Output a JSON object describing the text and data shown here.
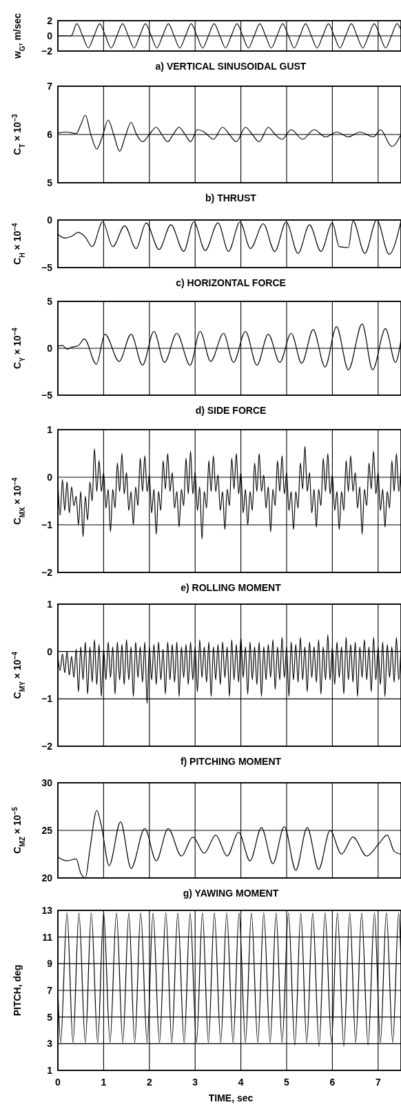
{
  "chart_data": [
    {
      "type": "line",
      "title": "a) VERTICAL SINUSOIDAL GUST",
      "ylabel": "w$_{G}$, m/sec",
      "xlim": [
        0,
        7.5
      ],
      "xticks": [
        0,
        1,
        2,
        3,
        4,
        5,
        6,
        7
      ],
      "ylim": [
        -2,
        2
      ],
      "yticks": [
        -2,
        0,
        2
      ],
      "grid": true,
      "tick_labels": "y",
      "x": [
        0,
        0.29,
        0.415,
        0.54,
        0.665,
        0.79,
        0.915,
        1.04,
        1.165,
        1.29,
        1.415,
        1.54,
        1.665,
        1.79,
        1.915,
        2.04,
        2.165,
        2.29,
        2.415,
        2.54,
        2.665,
        2.79,
        2.915,
        3.04,
        3.165,
        3.29,
        3.415,
        3.54,
        3.665,
        3.79,
        3.915,
        4.04,
        4.165,
        4.29,
        4.415,
        4.54,
        4.665,
        4.79,
        4.915,
        5.04,
        5.165,
        5.29,
        5.415,
        5.54,
        5.665,
        5.79,
        5.915,
        6.04,
        6.165,
        6.29,
        6.415,
        6.54,
        6.665,
        6.79,
        6.915,
        7.04,
        7.165,
        7.29,
        7.415,
        7.5
      ],
      "series": [
        {
          "color": "#000000",
          "values": [
            0,
            0,
            1.6,
            0,
            -1.6,
            0,
            1.6,
            0,
            -1.6,
            0,
            1.6,
            0,
            -1.6,
            0,
            1.6,
            0,
            -1.6,
            0,
            1.6,
            0,
            -1.6,
            0,
            1.6,
            0,
            -1.6,
            0,
            1.6,
            0,
            -1.6,
            0,
            1.6,
            0,
            -1.6,
            0,
            1.6,
            0,
            -1.6,
            0,
            1.6,
            0,
            -1.6,
            0,
            1.6,
            0,
            -1.6,
            0,
            1.6,
            0,
            -1.6,
            0,
            1.6,
            0,
            -1.6,
            0,
            1.6,
            0,
            -1.6,
            0,
            1.6,
            0.8
          ]
        }
      ]
    },
    {
      "type": "line",
      "title": "b) THRUST",
      "ylabel": "C$_{T}$ × 10$^{−3}$",
      "xlim": [
        0,
        7.5
      ],
      "xticks": [
        0,
        1,
        2,
        3,
        4,
        5,
        6,
        7
      ],
      "ylim": [
        5,
        7
      ],
      "yticks": [
        5,
        6,
        7
      ],
      "grid": true,
      "tick_labels": "y",
      "x": [
        0,
        0.2,
        0.4,
        0.5,
        0.6,
        0.72,
        0.85,
        0.97,
        1.1,
        1.22,
        1.35,
        1.47,
        1.6,
        1.72,
        1.85,
        2.0,
        2.15,
        2.27,
        2.4,
        2.52,
        2.65,
        2.78,
        2.9,
        3.05,
        3.2,
        3.4,
        3.6,
        3.75,
        3.9,
        4.1,
        4.25,
        4.4,
        4.6,
        4.75,
        4.9,
        5.1,
        5.35,
        5.6,
        5.85,
        6.1,
        6.35,
        6.6,
        6.9,
        7.05,
        7.3,
        7.5
      ],
      "series": [
        {
          "color": "#000000",
          "values": [
            6.03,
            6.05,
            6.02,
            6.2,
            6.4,
            6.0,
            5.7,
            5.95,
            6.3,
            6.0,
            5.65,
            5.95,
            6.25,
            6.0,
            5.85,
            6.0,
            6.15,
            6.0,
            5.85,
            6.0,
            6.15,
            6.0,
            5.85,
            6.1,
            6.05,
            5.9,
            6.15,
            6.0,
            5.85,
            6.15,
            6.0,
            5.85,
            6.15,
            6.0,
            5.9,
            6.1,
            5.9,
            6.1,
            5.95,
            6.05,
            5.95,
            6.05,
            5.95,
            6.1,
            5.75,
            6.0
          ]
        }
      ]
    },
    {
      "type": "line",
      "title": "c) HORIZONTAL FORCE",
      "ylabel": "C$_{H}$ × 10$^{−4}$",
      "xlim": [
        0,
        7.5
      ],
      "xticks": [
        0,
        1,
        2,
        3,
        4,
        5,
        6,
        7
      ],
      "ylim": [
        -5,
        0
      ],
      "yticks": [
        -5,
        0
      ],
      "grid": true,
      "tick_labels": "y",
      "x": [
        0,
        0.15,
        0.3,
        0.45,
        0.6,
        0.75,
        0.98,
        1.2,
        1.46,
        1.71,
        1.93,
        2.21,
        2.47,
        2.75,
        2.97,
        3.22,
        3.5,
        3.73,
        3.98,
        4.21,
        4.49,
        4.74,
        4.99,
        5.25,
        5.5,
        5.75,
        6.0,
        6.15,
        6.35,
        6.45,
        6.71,
        6.97,
        7.24,
        7.5
      ],
      "series": [
        {
          "color": "#000000",
          "values": [
            -1.5,
            -1.9,
            -1.7,
            -1.3,
            -1.8,
            -2.8,
            -0.2,
            -2.8,
            -0.6,
            -3.0,
            -0.3,
            -3.1,
            -0.5,
            -3.3,
            -0.2,
            -3.2,
            -0.3,
            -3.3,
            -0.2,
            -3.0,
            -0.4,
            -3.3,
            -0.2,
            -3.5,
            -0.5,
            -3.3,
            -0.3,
            -2.8,
            -2.9,
            -0.1,
            -3.5,
            0,
            -3.6,
            -0.1
          ]
        }
      ]
    },
    {
      "type": "line",
      "title": "d) SIDE FORCE",
      "ylabel": "C$_{Y}$ × 10$^{−4}$",
      "xlim": [
        0,
        7.5
      ],
      "xticks": [
        0,
        1,
        2,
        3,
        4,
        5,
        6,
        7
      ],
      "ylim": [
        -5,
        5
      ],
      "yticks": [
        -5,
        0,
        5
      ],
      "grid": true,
      "tick_labels": "y",
      "x": [
        0,
        0.1,
        0.2,
        0.3,
        0.45,
        0.58,
        0.84,
        1.03,
        1.34,
        1.6,
        1.85,
        2.1,
        2.33,
        2.6,
        2.89,
        3.11,
        3.34,
        3.62,
        3.84,
        4.1,
        4.35,
        4.6,
        4.85,
        5.1,
        5.33,
        5.58,
        5.84,
        6.09,
        6.35,
        6.65,
        6.88,
        7.16,
        7.38,
        7.5
      ],
      "series": [
        {
          "color": "#000000",
          "values": [
            0.2,
            0.3,
            -0.1,
            0.1,
            0.3,
            1.0,
            -1.7,
            1.5,
            -1.4,
            1.5,
            -1.8,
            1.8,
            -1.5,
            1.6,
            -1.8,
            1.8,
            -1.4,
            1.6,
            -1.5,
            1.8,
            -1.8,
            1.5,
            -1.5,
            1.6,
            -1.6,
            2.0,
            -2.0,
            2.3,
            -2.3,
            2.6,
            -2.3,
            2.1,
            -1.5,
            0.9
          ]
        }
      ]
    },
    {
      "type": "line",
      "title": "e) ROLLING MOMENT",
      "ylabel": "C$_{MX}$ × 10$^{−4}$",
      "xlim": [
        0,
        7.5
      ],
      "xticks": [
        0,
        1,
        2,
        3,
        4,
        5,
        6,
        7
      ],
      "ylim": [
        -2,
        1
      ],
      "yticks": [
        -2,
        -1,
        0,
        1
      ],
      "grid": true,
      "tick_labels": "y",
      "x": [
        0,
        0.05,
        0.1,
        0.15,
        0.2,
        0.25,
        0.3,
        0.35,
        0.4,
        0.45,
        0.5,
        0.55,
        0.6,
        0.65,
        0.7,
        0.75,
        0.8,
        0.85,
        0.9,
        0.95,
        1,
        1.05,
        1.1,
        1.15,
        1.2,
        1.25,
        1.3,
        1.35,
        1.4,
        1.45,
        1.5,
        1.55,
        1.6,
        1.65,
        1.7,
        1.75,
        1.8,
        1.85,
        1.9,
        1.95,
        2,
        2.05,
        2.1,
        2.15,
        2.2,
        2.25,
        2.3,
        2.35,
        2.4,
        2.45,
        2.5,
        2.55,
        2.6,
        2.65,
        2.7,
        2.75,
        2.8,
        2.85,
        2.9,
        2.95,
        3,
        3.05,
        3.1,
        3.15,
        3.2,
        3.25,
        3.3,
        3.35,
        3.4,
        3.45,
        3.5,
        3.55,
        3.6,
        3.65,
        3.7,
        3.75,
        3.8,
        3.85,
        3.9,
        3.95,
        4,
        4.05,
        4.1,
        4.15,
        4.2,
        4.25,
        4.3,
        4.35,
        4.4,
        4.45,
        4.5,
        4.55,
        4.6,
        4.65,
        4.7,
        4.75,
        4.8,
        4.85,
        4.9,
        4.95,
        5,
        5.05,
        5.1,
        5.15,
        5.2,
        5.25,
        5.3,
        5.35,
        5.4,
        5.45,
        5.5,
        5.55,
        5.6,
        5.65,
        5.7,
        5.75,
        5.8,
        5.85,
        5.9,
        5.95,
        6,
        6.05,
        6.1,
        6.15,
        6.2,
        6.25,
        6.3,
        6.35,
        6.4,
        6.45,
        6.5,
        6.55,
        6.6,
        6.65,
        6.7,
        6.75,
        6.8,
        6.85,
        6.9,
        6.95,
        7,
        7.05,
        7.1,
        7.15,
        7.2,
        7.25,
        7.3,
        7.35,
        7.4,
        7.45,
        7.5
      ],
      "series": [
        {
          "color": "#000000",
          "values": [
            -0.1,
            -0.8,
            -0.05,
            -0.7,
            -0.1,
            -0.75,
            -0.2,
            -0.6,
            -0.4,
            -1.0,
            -0.3,
            -1.25,
            -0.4,
            -0.9,
            -0.1,
            -0.5,
            0.6,
            -0.3,
            0.35,
            -0.3,
            0.1,
            -0.65,
            -0.25,
            -1.15,
            -0.25,
            -0.65,
            0.3,
            -0.3,
            0.5,
            -0.35,
            0.1,
            -0.7,
            -0.3,
            -1.0,
            -0.2,
            -0.6,
            0.4,
            -0.3,
            0.45,
            -0.3,
            0.05,
            -0.75,
            -0.25,
            -1.2,
            -0.3,
            -0.7,
            0.35,
            -0.25,
            0.5,
            -0.3,
            0.1,
            -0.65,
            -0.3,
            -1.05,
            -0.25,
            -0.6,
            0.4,
            -0.35,
            0.55,
            -0.35,
            0.1,
            -0.7,
            -0.2,
            -1.3,
            -0.3,
            -0.65,
            0.35,
            -0.3,
            0.45,
            -0.3,
            0.05,
            -0.7,
            -0.3,
            -1.1,
            -0.25,
            -0.6,
            0.4,
            -0.25,
            0.5,
            -0.35,
            0.1,
            -0.75,
            -0.25,
            -1.0,
            -0.3,
            -0.7,
            0.3,
            -0.3,
            0.5,
            -0.3,
            0.05,
            -0.65,
            -0.2,
            -1.15,
            -0.25,
            -0.6,
            0.35,
            -0.3,
            0.45,
            -0.35,
            0.1,
            -0.7,
            -0.3,
            -1.1,
            -0.3,
            -0.65,
            0.3,
            -0.25,
            0.65,
            -0.3,
            0.1,
            -0.75,
            -0.25,
            -1.05,
            -0.25,
            -0.6,
            0.4,
            -0.3,
            0.5,
            -0.35,
            0.05,
            -0.7,
            -0.3,
            -1.1,
            -0.3,
            -0.7,
            0.35,
            -0.3,
            0.45,
            -0.3,
            0.1,
            -0.65,
            -0.2,
            -1.2,
            -0.25,
            -0.6,
            0.3,
            -0.25,
            0.55,
            -0.35,
            0.1,
            -0.7,
            -0.25,
            -1.05,
            -0.3,
            -0.65,
            0.35,
            -0.3,
            0.5,
            -0.3,
            0.2
          ]
        }
      ]
    },
    {
      "type": "line",
      "title": "f) PITCHING MOMENT",
      "ylabel": "C$_{MY}$ × 10$^{−4}$",
      "xlim": [
        0,
        7.5
      ],
      "xticks": [
        0,
        1,
        2,
        3,
        4,
        5,
        6,
        7
      ],
      "ylim": [
        -2,
        1
      ],
      "yticks": [
        -2,
        -1,
        0,
        1
      ],
      "grid": true,
      "tick_labels": "y",
      "x": [
        0,
        0.05,
        0.1,
        0.15,
        0.2,
        0.25,
        0.3,
        0.35,
        0.4,
        0.45,
        0.5,
        0.55,
        0.6,
        0.65,
        0.7,
        0.75,
        0.8,
        0.85,
        0.9,
        0.95,
        1,
        1.05,
        1.1,
        1.15,
        1.2,
        1.25,
        1.3,
        1.35,
        1.4,
        1.45,
        1.5,
        1.55,
        1.6,
        1.65,
        1.7,
        1.75,
        1.8,
        1.85,
        1.9,
        1.95,
        2,
        2.05,
        2.1,
        2.15,
        2.2,
        2.25,
        2.3,
        2.35,
        2.4,
        2.45,
        2.5,
        2.55,
        2.6,
        2.65,
        2.7,
        2.75,
        2.8,
        2.85,
        2.9,
        2.95,
        3,
        3.05,
        3.1,
        3.15,
        3.2,
        3.25,
        3.3,
        3.35,
        3.4,
        3.45,
        3.5,
        3.55,
        3.6,
        3.65,
        3.7,
        3.75,
        3.8,
        3.85,
        3.9,
        3.95,
        4,
        4.05,
        4.1,
        4.15,
        4.2,
        4.25,
        4.3,
        4.35,
        4.4,
        4.45,
        4.5,
        4.55,
        4.6,
        4.65,
        4.7,
        4.75,
        4.8,
        4.85,
        4.9,
        4.95,
        5,
        5.05,
        5.1,
        5.15,
        5.2,
        5.25,
        5.3,
        5.35,
        5.4,
        5.45,
        5.5,
        5.55,
        5.6,
        5.65,
        5.7,
        5.75,
        5.8,
        5.85,
        5.9,
        5.95,
        6,
        6.05,
        6.1,
        6.15,
        6.2,
        6.25,
        6.3,
        6.35,
        6.4,
        6.45,
        6.5,
        6.55,
        6.6,
        6.65,
        6.7,
        6.75,
        6.8,
        6.85,
        6.9,
        6.95,
        7,
        7.05,
        7.1,
        7.15,
        7.2,
        7.25,
        7.3,
        7.35,
        7.4,
        7.45,
        7.5
      ],
      "series": [
        {
          "color": "#000000",
          "values": [
            -0.1,
            -0.4,
            -0.05,
            -0.45,
            0.0,
            -0.5,
            -0.1,
            -0.55,
            0.05,
            -0.85,
            0.1,
            -0.6,
            0.2,
            -0.9,
            0.1,
            -0.65,
            0.25,
            -0.7,
            0.15,
            -0.95,
            0.05,
            -0.6,
            0.2,
            -0.55,
            0.1,
            -0.9,
            0.2,
            -0.6,
            0.15,
            -0.7,
            0.25,
            -0.6,
            0.1,
            -0.95,
            0.2,
            -0.55,
            0.1,
            -0.65,
            0.2,
            -1.1,
            0.1,
            -0.6,
            0.15,
            -0.7,
            0.2,
            -0.6,
            0.05,
            -0.9,
            0.2,
            -0.6,
            0.15,
            -0.65,
            0.2,
            -0.95,
            0.1,
            -0.55,
            0.15,
            -0.7,
            0.2,
            -0.6,
            0.1,
            -0.85,
            0.25,
            -0.55,
            0.1,
            -0.65,
            0.2,
            -0.95,
            0.1,
            -0.6,
            0.15,
            -0.7,
            0.2,
            -0.55,
            0.1,
            -0.95,
            0.25,
            -0.6,
            0.15,
            -0.65,
            0.3,
            -0.55,
            0.1,
            -0.9,
            0.2,
            -0.6,
            0.1,
            -0.7,
            0.2,
            -0.95,
            0.1,
            -0.6,
            0.15,
            -0.55,
            0.25,
            -0.8,
            0.1,
            -0.6,
            0.3,
            -0.55,
            0.1,
            -0.95,
            0.2,
            -0.6,
            0.15,
            -0.65,
            0.3,
            -0.6,
            0.1,
            -0.85,
            0.2,
            -0.55,
            0.1,
            -0.65,
            0.25,
            -0.9,
            0.1,
            -0.6,
            0.35,
            -0.6,
            0.1,
            -0.7,
            0.2,
            -0.55,
            0.1,
            -0.9,
            0.3,
            -0.6,
            0.15,
            -0.65,
            0.2,
            -0.95,
            0.1,
            -0.55,
            0.25,
            -0.6,
            0.1,
            -0.85,
            0.3,
            -0.6,
            0.1,
            -0.7,
            0.2,
            -0.95,
            0.15,
            -0.55,
            0.1,
            -0.65,
            0.3,
            -0.6,
            0.1
          ]
        }
      ]
    },
    {
      "type": "line",
      "title": "g) YAWING MOMENT",
      "ylabel": "C$_{MZ}$ × 10$^{−5}$",
      "xlim": [
        0,
        7.5
      ],
      "xticks": [
        0,
        1,
        2,
        3,
        4,
        5,
        6,
        7
      ],
      "ylim": [
        20,
        30
      ],
      "yticks": [
        20,
        25,
        30
      ],
      "grid": true,
      "tick_labels": "y",
      "x": [
        0,
        0.2,
        0.4,
        0.5,
        0.6,
        0.7,
        0.85,
        0.95,
        1.12,
        1.37,
        1.6,
        1.9,
        2.15,
        2.41,
        2.7,
        2.95,
        3.2,
        3.45,
        3.7,
        3.95,
        4.2,
        4.45,
        4.7,
        4.95,
        5.2,
        5.45,
        5.7,
        5.95,
        6.2,
        6.45,
        6.75,
        7.0,
        7.2,
        7.35,
        7.5
      ],
      "series": [
        {
          "color": "#000000",
          "values": [
            22.2,
            21.8,
            22.0,
            20.5,
            20.0,
            23.0,
            27.1,
            25.5,
            21.3,
            25.9,
            21.0,
            25.2,
            21.8,
            25.2,
            22.3,
            24.3,
            22.6,
            24.5,
            22.3,
            24.8,
            21.8,
            25.3,
            21.5,
            25.4,
            20.8,
            25.3,
            20.9,
            25.0,
            22.5,
            24.3,
            22.3,
            23.5,
            24.5,
            22.8,
            22.5
          ]
        }
      ]
    },
    {
      "type": "line",
      "ylabel": "PITCH, deg",
      "xlabel": "TIME, sec",
      "xlim": [
        0,
        7.5
      ],
      "xticks": [
        0,
        1,
        2,
        3,
        4,
        5,
        6,
        7
      ],
      "ylim": [
        1,
        13
      ],
      "yticks": [
        1,
        3,
        5,
        7,
        9,
        11,
        13
      ],
      "grid": true,
      "x": [
        0,
        0.06,
        0.2,
        0.33,
        0.46,
        0.6,
        0.73,
        0.87,
        1.0,
        1.14,
        1.28,
        1.42,
        1.55,
        1.68,
        1.81,
        1.95,
        2.08,
        2.22,
        2.36,
        2.49,
        2.62,
        2.76,
        2.89,
        3.03,
        3.16,
        3.29,
        3.42,
        3.56,
        3.69,
        3.83,
        3.96,
        4.1,
        4.23,
        4.37,
        4.5,
        4.64,
        4.77,
        4.9,
        5.04,
        5.18,
        5.31,
        5.44,
        5.57,
        5.71,
        5.84,
        5.98,
        6.11,
        6.25,
        6.38,
        6.51,
        6.64,
        6.78,
        6.92,
        7.05,
        7.18,
        7.32,
        7.45,
        7.5
      ],
      "series": [
        {
          "color": "#000000",
          "values": [
            7,
            3.1,
            12.8,
            3.1,
            12.8,
            3.1,
            12.8,
            3.1,
            12.8,
            3.1,
            12.8,
            3.1,
            12.8,
            3.1,
            12.8,
            3.1,
            12.8,
            3.1,
            12.8,
            3.1,
            12.8,
            3.1,
            12.8,
            3.1,
            12.8,
            3.1,
            12.8,
            3.1,
            12.8,
            3.1,
            12.8,
            3.1,
            12.8,
            3.1,
            12.8,
            3.1,
            12.8,
            3.1,
            12.8,
            2.9,
            12.8,
            3.1,
            12.8,
            2.8,
            12.8,
            3.1,
            12.8,
            2.8,
            12.8,
            3.1,
            12.8,
            2.9,
            12.8,
            3.1,
            12.8,
            3.1,
            12.8,
            9.2
          ]
        }
      ]
    }
  ]
}
